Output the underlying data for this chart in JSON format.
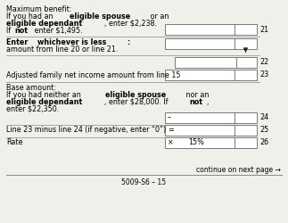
{
  "bg_color": "#f0f0eb",
  "text_color": "#000000",
  "continue_text": "continue on next page →",
  "footer": "5009-S6 – 15",
  "minus_sym": "–",
  "equals_sym": "=",
  "times_sym": "×",
  "rate_value": "15%",
  "line23_label": "Line 23 minus line 24 (if negative, enter “0”)"
}
